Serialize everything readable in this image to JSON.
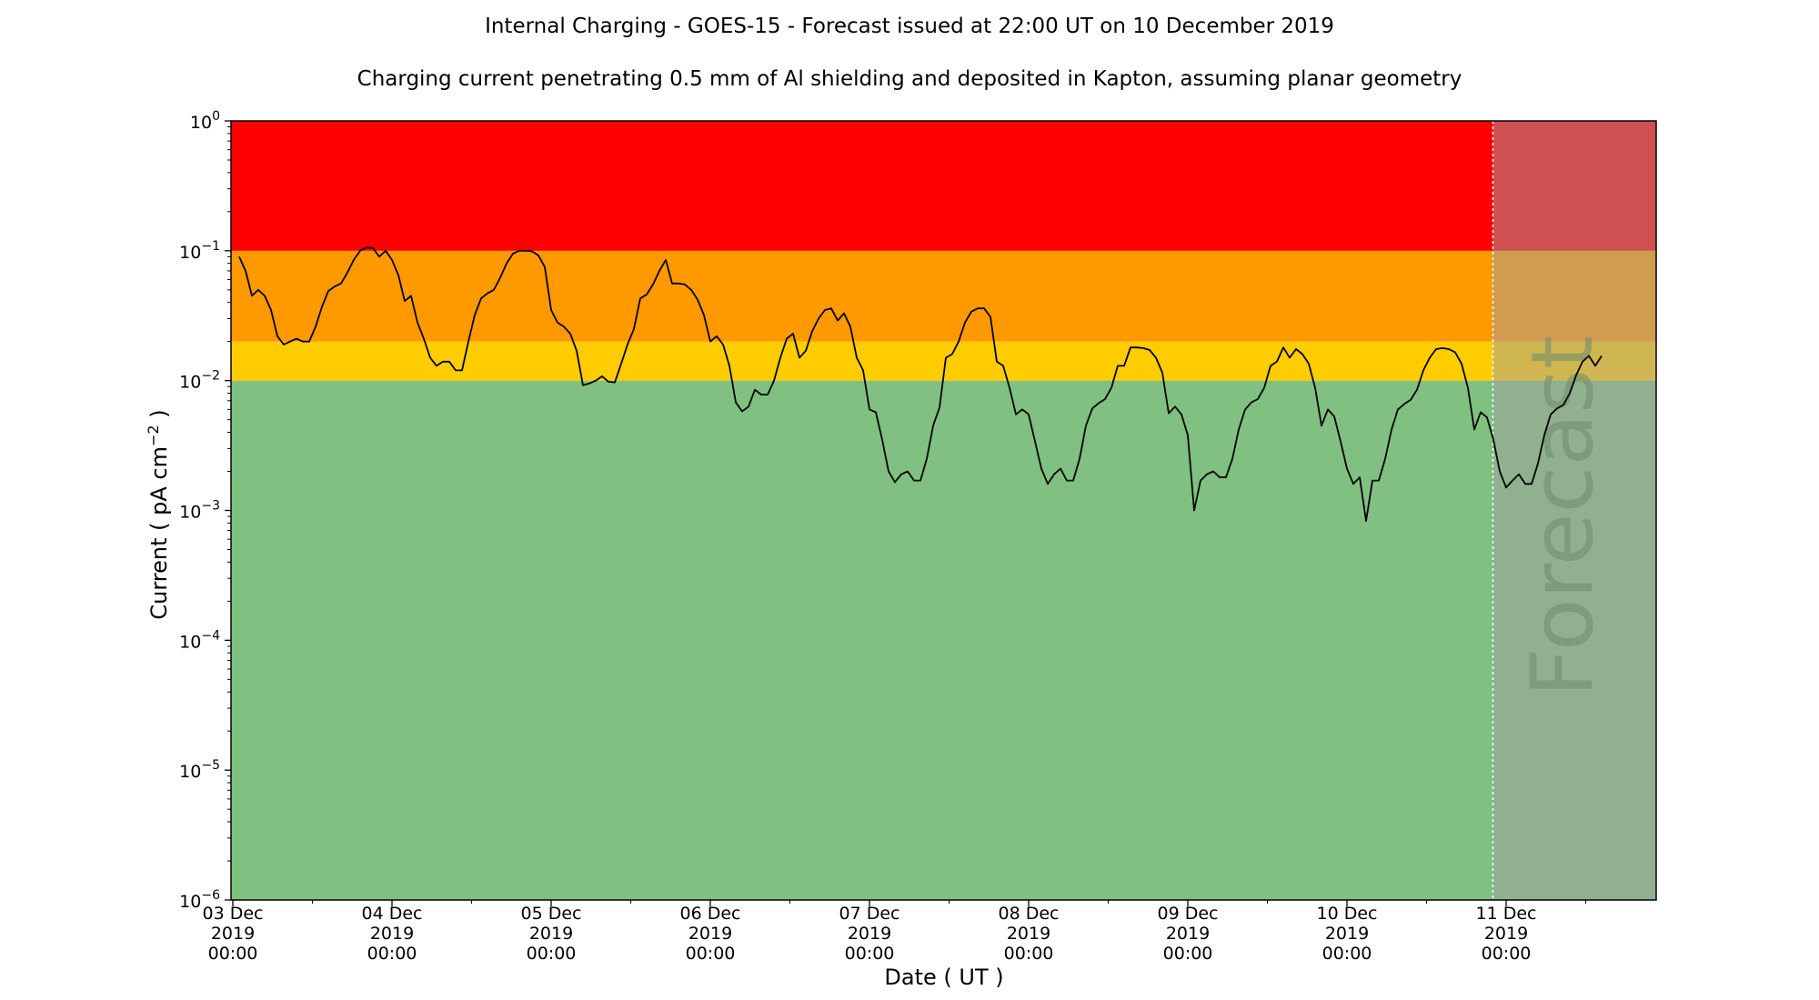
{
  "chart_data": {
    "type": "line",
    "title": "Internal Charging - GOES-15 - Forecast issued at 22:00 UT on 10 December 2019",
    "subtitle": "Charging current penetrating 0.5 mm of Al shielding and deposited in Kapton, assuming planar geometry",
    "xlabel": "Date ( UT )",
    "ylabel": "Current ( pA cm",
    "ylabel_superscript": "−2",
    "ylabel_close": " )",
    "y_scale": "log",
    "ylim": [
      1e-06,
      1
    ],
    "xlim_days": [
      "2019-12-03 00:00",
      "2019-12-11 23:00"
    ],
    "y_ticks": [
      {
        "value": 1.0,
        "base": "10",
        "exp": "0"
      },
      {
        "value": 0.1,
        "base": "10",
        "exp": "−1"
      },
      {
        "value": 0.01,
        "base": "10",
        "exp": "−2"
      },
      {
        "value": 0.001,
        "base": "10",
        "exp": "−3"
      },
      {
        "value": 0.0001,
        "base": "10",
        "exp": "−4"
      },
      {
        "value": 1e-05,
        "base": "10",
        "exp": "−5"
      },
      {
        "value": 1e-06,
        "base": "10",
        "exp": "−6"
      }
    ],
    "x_ticks": [
      {
        "day": 0,
        "lines": [
          "03 Dec",
          "2019",
          "00:00"
        ]
      },
      {
        "day": 1,
        "lines": [
          "04 Dec",
          "2019",
          "00:00"
        ]
      },
      {
        "day": 2,
        "lines": [
          "05 Dec",
          "2019",
          "00:00"
        ]
      },
      {
        "day": 3,
        "lines": [
          "06 Dec",
          "2019",
          "00:00"
        ]
      },
      {
        "day": 4,
        "lines": [
          "07 Dec",
          "2019",
          "00:00"
        ]
      },
      {
        "day": 5,
        "lines": [
          "08 Dec",
          "2019",
          "00:00"
        ]
      },
      {
        "day": 6,
        "lines": [
          "09 Dec",
          "2019",
          "00:00"
        ]
      },
      {
        "day": 7,
        "lines": [
          "10 Dec",
          "2019",
          "00:00"
        ]
      },
      {
        "day": 8,
        "lines": [
          "11 Dec",
          "2019",
          "00:00"
        ]
      }
    ],
    "bands": [
      {
        "from": 1e-06,
        "to": 0.01,
        "color": "#80c080"
      },
      {
        "from": 0.01,
        "to": 0.02,
        "color": "#ffcc00"
      },
      {
        "from": 0.02,
        "to": 0.1,
        "color": "#ff9900"
      },
      {
        "from": 0.1,
        "to": 1.0,
        "color": "#ff0000"
      }
    ],
    "forecast": {
      "start_day": 7.917,
      "label": "Forecast",
      "overlay_color": "#a0a0a0",
      "overlay_opacity": 0.5
    },
    "series": [
      {
        "color": "#000000",
        "points": [
          [
            0.04,
            0.09
          ],
          [
            0.08,
            0.07
          ],
          [
            0.12,
            0.045
          ],
          [
            0.16,
            0.05
          ],
          [
            0.2,
            0.045
          ],
          [
            0.24,
            0.035
          ],
          [
            0.28,
            0.022
          ],
          [
            0.32,
            0.019
          ],
          [
            0.36,
            0.02
          ],
          [
            0.4,
            0.021
          ],
          [
            0.44,
            0.02
          ],
          [
            0.48,
            0.02
          ],
          [
            0.52,
            0.026
          ],
          [
            0.56,
            0.037
          ],
          [
            0.6,
            0.049
          ],
          [
            0.64,
            0.053
          ],
          [
            0.68,
            0.056
          ],
          [
            0.72,
            0.068
          ],
          [
            0.76,
            0.085
          ],
          [
            0.8,
            0.1
          ],
          [
            0.84,
            0.106
          ],
          [
            0.88,
            0.105
          ],
          [
            0.92,
            0.09
          ],
          [
            0.96,
            0.1
          ],
          [
            1.0,
            0.085
          ],
          [
            1.04,
            0.065
          ],
          [
            1.08,
            0.041
          ],
          [
            1.12,
            0.045
          ],
          [
            1.16,
            0.028
          ],
          [
            1.2,
            0.021
          ],
          [
            1.24,
            0.015
          ],
          [
            1.28,
            0.013
          ],
          [
            1.32,
            0.014
          ],
          [
            1.36,
            0.014
          ],
          [
            1.4,
            0.012
          ],
          [
            1.44,
            0.012
          ],
          [
            1.48,
            0.02
          ],
          [
            1.52,
            0.032
          ],
          [
            1.56,
            0.043
          ],
          [
            1.6,
            0.047
          ],
          [
            1.64,
            0.05
          ],
          [
            1.68,
            0.062
          ],
          [
            1.72,
            0.08
          ],
          [
            1.76,
            0.095
          ],
          [
            1.8,
            0.1
          ],
          [
            1.84,
            0.1
          ],
          [
            1.88,
            0.099
          ],
          [
            1.92,
            0.092
          ],
          [
            1.96,
            0.075
          ],
          [
            2.0,
            0.035
          ],
          [
            2.04,
            0.028
          ],
          [
            2.08,
            0.026
          ],
          [
            2.12,
            0.023
          ],
          [
            2.16,
            0.017
          ],
          [
            2.2,
            0.0092
          ],
          [
            2.24,
            0.0095
          ],
          [
            2.28,
            0.01
          ],
          [
            2.32,
            0.0108
          ],
          [
            2.36,
            0.0098
          ],
          [
            2.4,
            0.0097
          ],
          [
            2.44,
            0.0135
          ],
          [
            2.48,
            0.019
          ],
          [
            2.52,
            0.025
          ],
          [
            2.56,
            0.043
          ],
          [
            2.6,
            0.046
          ],
          [
            2.64,
            0.055
          ],
          [
            2.68,
            0.07
          ],
          [
            2.72,
            0.085
          ],
          [
            2.76,
            0.056
          ],
          [
            2.8,
            0.056
          ],
          [
            2.84,
            0.055
          ],
          [
            2.88,
            0.05
          ],
          [
            2.92,
            0.042
          ],
          [
            2.96,
            0.032
          ],
          [
            3.0,
            0.02
          ],
          [
            3.04,
            0.022
          ],
          [
            3.08,
            0.019
          ],
          [
            3.12,
            0.013
          ],
          [
            3.16,
            0.0068
          ],
          [
            3.2,
            0.0058
          ],
          [
            3.24,
            0.0063
          ],
          [
            3.28,
            0.0085
          ],
          [
            3.32,
            0.0078
          ],
          [
            3.36,
            0.0078
          ],
          [
            3.4,
            0.01
          ],
          [
            3.44,
            0.015
          ],
          [
            3.48,
            0.021
          ],
          [
            3.52,
            0.023
          ],
          [
            3.56,
            0.015
          ],
          [
            3.6,
            0.017
          ],
          [
            3.64,
            0.024
          ],
          [
            3.68,
            0.03
          ],
          [
            3.72,
            0.035
          ],
          [
            3.76,
            0.036
          ],
          [
            3.8,
            0.029
          ],
          [
            3.84,
            0.033
          ],
          [
            3.88,
            0.026
          ],
          [
            3.92,
            0.015
          ],
          [
            3.96,
            0.012
          ],
          [
            4.0,
            0.006
          ],
          [
            4.04,
            0.0057
          ],
          [
            4.08,
            0.0035
          ],
          [
            4.12,
            0.002
          ],
          [
            4.16,
            0.00165
          ],
          [
            4.2,
            0.0019
          ],
          [
            4.24,
            0.002
          ],
          [
            4.28,
            0.0017
          ],
          [
            4.32,
            0.0017
          ],
          [
            4.36,
            0.0025
          ],
          [
            4.4,
            0.0045
          ],
          [
            4.44,
            0.0062
          ],
          [
            4.48,
            0.015
          ],
          [
            4.52,
            0.016
          ],
          [
            4.56,
            0.02
          ],
          [
            4.6,
            0.028
          ],
          [
            4.64,
            0.034
          ],
          [
            4.68,
            0.036
          ],
          [
            4.72,
            0.036
          ],
          [
            4.76,
            0.031
          ],
          [
            4.8,
            0.014
          ],
          [
            4.84,
            0.013
          ],
          [
            4.88,
            0.0088
          ],
          [
            4.92,
            0.0055
          ],
          [
            4.96,
            0.006
          ],
          [
            5.0,
            0.0055
          ],
          [
            5.04,
            0.0034
          ],
          [
            5.08,
            0.0021
          ],
          [
            5.12,
            0.0016
          ],
          [
            5.16,
            0.0019
          ],
          [
            5.2,
            0.0021
          ],
          [
            5.24,
            0.0017
          ],
          [
            5.28,
            0.0017
          ],
          [
            5.32,
            0.0025
          ],
          [
            5.36,
            0.0045
          ],
          [
            5.4,
            0.0061
          ],
          [
            5.44,
            0.0067
          ],
          [
            5.48,
            0.0072
          ],
          [
            5.52,
            0.0088
          ],
          [
            5.56,
            0.013
          ],
          [
            5.6,
            0.013
          ],
          [
            5.64,
            0.018
          ],
          [
            5.68,
            0.018
          ],
          [
            5.72,
            0.0178
          ],
          [
            5.76,
            0.0172
          ],
          [
            5.8,
            0.015
          ],
          [
            5.84,
            0.0115
          ],
          [
            5.88,
            0.0056
          ],
          [
            5.92,
            0.0063
          ],
          [
            5.96,
            0.0055
          ],
          [
            6.0,
            0.0038
          ],
          [
            6.04,
            0.001
          ],
          [
            6.08,
            0.0017
          ],
          [
            6.12,
            0.0019
          ],
          [
            6.16,
            0.002
          ],
          [
            6.2,
            0.0018
          ],
          [
            6.24,
            0.0018
          ],
          [
            6.28,
            0.0025
          ],
          [
            6.32,
            0.0042
          ],
          [
            6.36,
            0.006
          ],
          [
            6.4,
            0.0068
          ],
          [
            6.44,
            0.0072
          ],
          [
            6.48,
            0.0088
          ],
          [
            6.52,
            0.013
          ],
          [
            6.56,
            0.014
          ],
          [
            6.6,
            0.018
          ],
          [
            6.64,
            0.015
          ],
          [
            6.68,
            0.0175
          ],
          [
            6.72,
            0.016
          ],
          [
            6.76,
            0.0135
          ],
          [
            6.8,
            0.0088
          ],
          [
            6.84,
            0.0045
          ],
          [
            6.88,
            0.006
          ],
          [
            6.92,
            0.0053
          ],
          [
            6.96,
            0.0034
          ],
          [
            7.0,
            0.0021
          ],
          [
            7.04,
            0.0016
          ],
          [
            7.08,
            0.0018
          ],
          [
            7.12,
            0.00083
          ],
          [
            7.16,
            0.0017
          ],
          [
            7.2,
            0.0017
          ],
          [
            7.24,
            0.0025
          ],
          [
            7.28,
            0.0042
          ],
          [
            7.32,
            0.006
          ],
          [
            7.36,
            0.0066
          ],
          [
            7.4,
            0.0071
          ],
          [
            7.44,
            0.0085
          ],
          [
            7.48,
            0.012
          ],
          [
            7.52,
            0.015
          ],
          [
            7.56,
            0.0175
          ],
          [
            7.6,
            0.0178
          ],
          [
            7.64,
            0.0175
          ],
          [
            7.68,
            0.0165
          ],
          [
            7.72,
            0.0135
          ],
          [
            7.76,
            0.0088
          ],
          [
            7.8,
            0.0042
          ],
          [
            7.84,
            0.0057
          ],
          [
            7.88,
            0.0052
          ],
          [
            7.92,
            0.0035
          ],
          [
            7.96,
            0.002
          ],
          [
            8.0,
            0.0015
          ],
          [
            8.04,
            0.0017
          ],
          [
            8.08,
            0.0019
          ],
          [
            8.12,
            0.0016
          ],
          [
            8.16,
            0.0016
          ],
          [
            8.2,
            0.0023
          ],
          [
            8.24,
            0.0038
          ],
          [
            8.28,
            0.0055
          ],
          [
            8.32,
            0.0061
          ],
          [
            8.36,
            0.0065
          ],
          [
            8.4,
            0.008
          ],
          [
            8.44,
            0.011
          ],
          [
            8.48,
            0.014
          ],
          [
            8.52,
            0.0155
          ],
          [
            8.56,
            0.013
          ],
          [
            8.6,
            0.0155
          ]
        ]
      }
    ]
  }
}
